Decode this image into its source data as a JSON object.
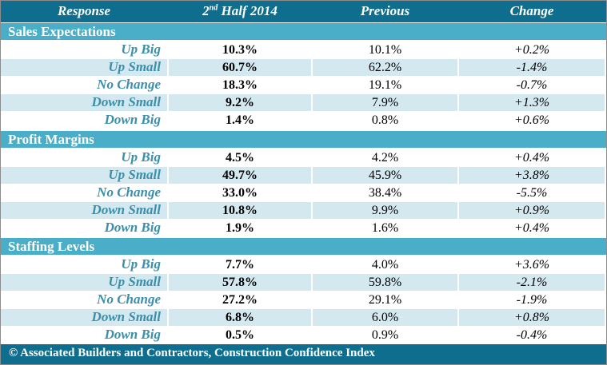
{
  "header": {
    "col_response": "Response",
    "col_current_prefix": "2",
    "col_current_sup": "nd",
    "col_current_suffix": " Half 2014",
    "col_previous": "Previous",
    "col_change": "Change"
  },
  "sections": [
    {
      "title": "Sales Expectations",
      "rows": [
        {
          "label": "Up Big",
          "current": "10.3%",
          "previous": "10.1%",
          "change": "+0.2%"
        },
        {
          "label": "Up Small",
          "current": "60.7%",
          "previous": "62.2%",
          "change": "-1.4%"
        },
        {
          "label": "No Change",
          "current": "18.3%",
          "previous": "19.1%",
          "change": "-0.7%"
        },
        {
          "label": "Down Small",
          "current": "9.2%",
          "previous": "7.9%",
          "change": "+1.3%"
        },
        {
          "label": "Down Big",
          "current": "1.4%",
          "previous": "0.8%",
          "change": "+0.6%"
        }
      ]
    },
    {
      "title": "Profit Margins",
      "rows": [
        {
          "label": "Up Big",
          "current": "4.5%",
          "previous": "4.2%",
          "change": "+0.4%"
        },
        {
          "label": "Up Small",
          "current": "49.7%",
          "previous": "45.9%",
          "change": "+3.8%"
        },
        {
          "label": "No Change",
          "current": "33.0%",
          "previous": "38.4%",
          "change": "-5.5%"
        },
        {
          "label": "Down Small",
          "current": "10.8%",
          "previous": "9.9%",
          "change": "+0.9%"
        },
        {
          "label": "Down Big",
          "current": "1.9%",
          "previous": "1.6%",
          "change": "+0.4%"
        }
      ]
    },
    {
      "title": "Staffing Levels",
      "rows": [
        {
          "label": "Up Big",
          "current": "7.7%",
          "previous": "4.0%",
          "change": "+3.6%"
        },
        {
          "label": "Up Small",
          "current": "57.8%",
          "previous": "59.8%",
          "change": "-2.1%"
        },
        {
          "label": "No Change",
          "current": "27.2%",
          "previous": "29.1%",
          "change": "-1.9%"
        },
        {
          "label": "Down Small",
          "current": "6.8%",
          "previous": "6.0%",
          "change": "+0.8%"
        },
        {
          "label": "Down Big",
          "current": "0.5%",
          "previous": "0.9%",
          "change": "-0.4%"
        }
      ]
    }
  ],
  "footer": "© Associated Builders and Contractors, Construction Confidence Index"
}
